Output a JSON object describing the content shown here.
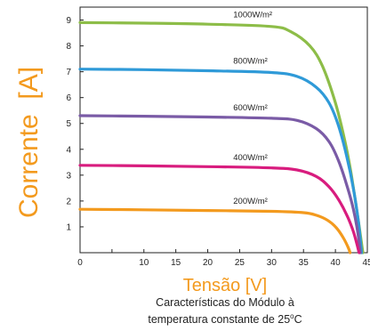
{
  "chart_data": {
    "type": "line",
    "ylabel": "Corrente  [A]",
    "xlabel": "Tensão [V]",
    "caption_line1": "Características do Módulo à",
    "caption_line2": "temperatura constante de 25",
    "caption_degree": "o",
    "caption_unit": "C",
    "xlim": [
      0,
      45
    ],
    "ylim": [
      0,
      9.5
    ],
    "xticks": [
      0,
      5,
      10,
      15,
      20,
      25,
      30,
      35,
      40,
      45
    ],
    "xtick_labels": [
      "0",
      "10",
      "15",
      "20",
      "25",
      "30",
      "35",
      "40",
      "45"
    ],
    "xtick_values": [
      0,
      10,
      15,
      20,
      25,
      30,
      35,
      40,
      45
    ],
    "yticks": [
      1,
      2,
      3,
      4,
      5,
      6,
      7,
      8,
      9
    ],
    "ytick_labels": [
      "1",
      "2",
      "3",
      "4",
      "5",
      "6",
      "7",
      "8",
      "9"
    ],
    "grid": false,
    "series": [
      {
        "name": "1000W/m²",
        "color": "#8dbd48",
        "x": [
          0,
          10,
          20,
          30,
          33,
          36,
          38,
          40,
          41.5,
          42.5,
          43.5,
          44.3
        ],
        "y": [
          8.9,
          8.88,
          8.84,
          8.75,
          8.55,
          8.0,
          7.2,
          5.8,
          4.3,
          3.0,
          1.4,
          0
        ]
      },
      {
        "name": "800W/m²",
        "color": "#2f9ad8",
        "x": [
          0,
          10,
          20,
          30,
          34,
          37,
          39,
          40.5,
          41.8,
          42.8,
          43.6,
          44.1
        ],
        "y": [
          7.1,
          7.08,
          7.04,
          6.97,
          6.82,
          6.4,
          5.8,
          4.9,
          3.7,
          2.5,
          1.2,
          0
        ]
      },
      {
        "name": "600W/m²",
        "color": "#7a5ba6",
        "x": [
          0,
          10,
          20,
          30,
          34,
          37,
          39,
          40.5,
          41.8,
          42.8,
          43.5,
          43.9
        ],
        "y": [
          5.3,
          5.28,
          5.25,
          5.2,
          5.12,
          4.8,
          4.3,
          3.55,
          2.6,
          1.7,
          0.8,
          0
        ]
      },
      {
        "name": "400W/m²",
        "color": "#d81c7e",
        "x": [
          0,
          10,
          20,
          30,
          34,
          37,
          39,
          40.5,
          41.8,
          42.7,
          43.3,
          43.7
        ],
        "y": [
          3.38,
          3.36,
          3.33,
          3.28,
          3.2,
          2.95,
          2.55,
          2.05,
          1.45,
          0.9,
          0.4,
          0
        ]
      },
      {
        "name": "200W/m²",
        "color": "#f39a1e",
        "x": [
          0,
          10,
          20,
          30,
          35,
          37,
          38.8,
          40.2,
          41.3,
          42.0,
          42.3
        ],
        "y": [
          1.68,
          1.66,
          1.63,
          1.6,
          1.55,
          1.45,
          1.25,
          0.95,
          0.55,
          0.2,
          0
        ]
      }
    ],
    "series_label_x": [
      24,
      24,
      24,
      24,
      24
    ]
  }
}
